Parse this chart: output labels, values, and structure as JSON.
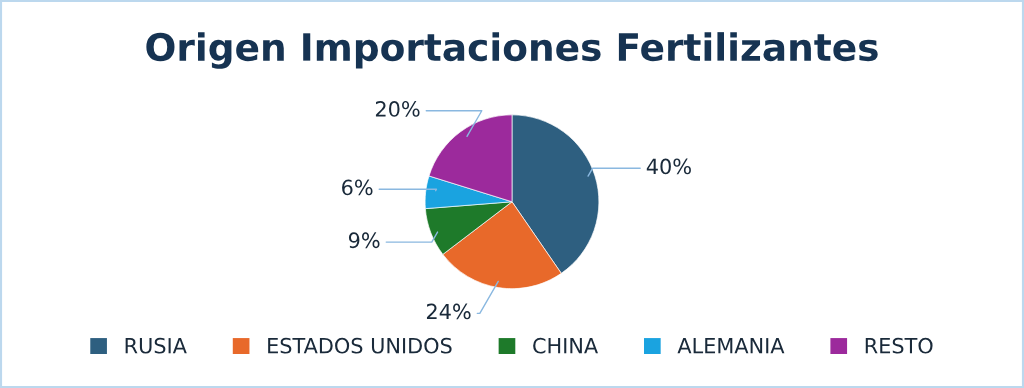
{
  "chart_data": {
    "type": "pie",
    "title": "Origen Importaciones Fertilizantes",
    "categories": [
      "RUSIA",
      "ESTADOS UNIDOS",
      "CHINA",
      "ALEMANIA",
      "RESTO"
    ],
    "values": [
      40,
      24,
      9,
      6,
      20
    ],
    "colors": [
      "#2e5f80",
      "#e8692a",
      "#1e7a2a",
      "#1aa3e0",
      "#9c2a9c"
    ],
    "value_labels": [
      "40%",
      "24%",
      "9%",
      "6%",
      "20%"
    ],
    "legend": "bottom"
  }
}
